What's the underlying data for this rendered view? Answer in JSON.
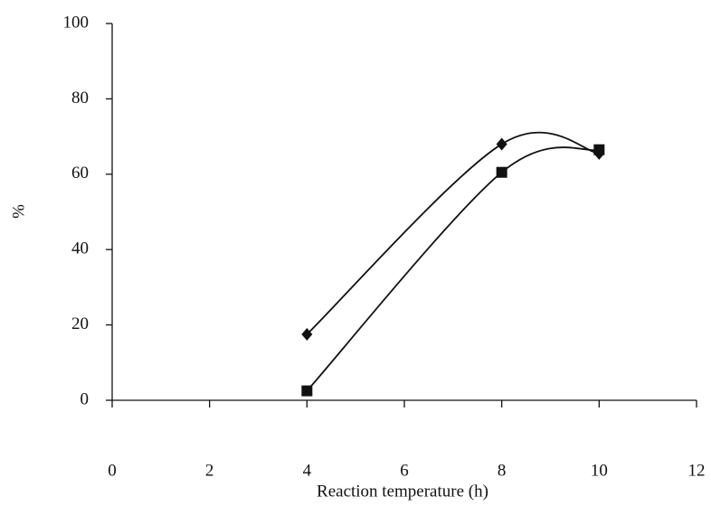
{
  "chart_data": {
    "type": "line",
    "xlabel": "Reaction temperature (h)",
    "ylabel": "%",
    "x": [
      4,
      8,
      10
    ],
    "series": [
      {
        "color": "#111111",
        "marker": "diamond",
        "values": [
          17.5,
          68,
          65.5
        ]
      },
      {
        "color": "#111111",
        "marker": "square",
        "values": [
          2.5,
          60.5,
          66.5
        ]
      }
    ],
    "xlim": [
      0,
      12
    ],
    "xticks": [
      0,
      2,
      4,
      6,
      8,
      10,
      12
    ],
    "ylim": [
      0,
      100
    ],
    "yticks": [
      0,
      20,
      40,
      60,
      80,
      100
    ],
    "smooth": true
  }
}
